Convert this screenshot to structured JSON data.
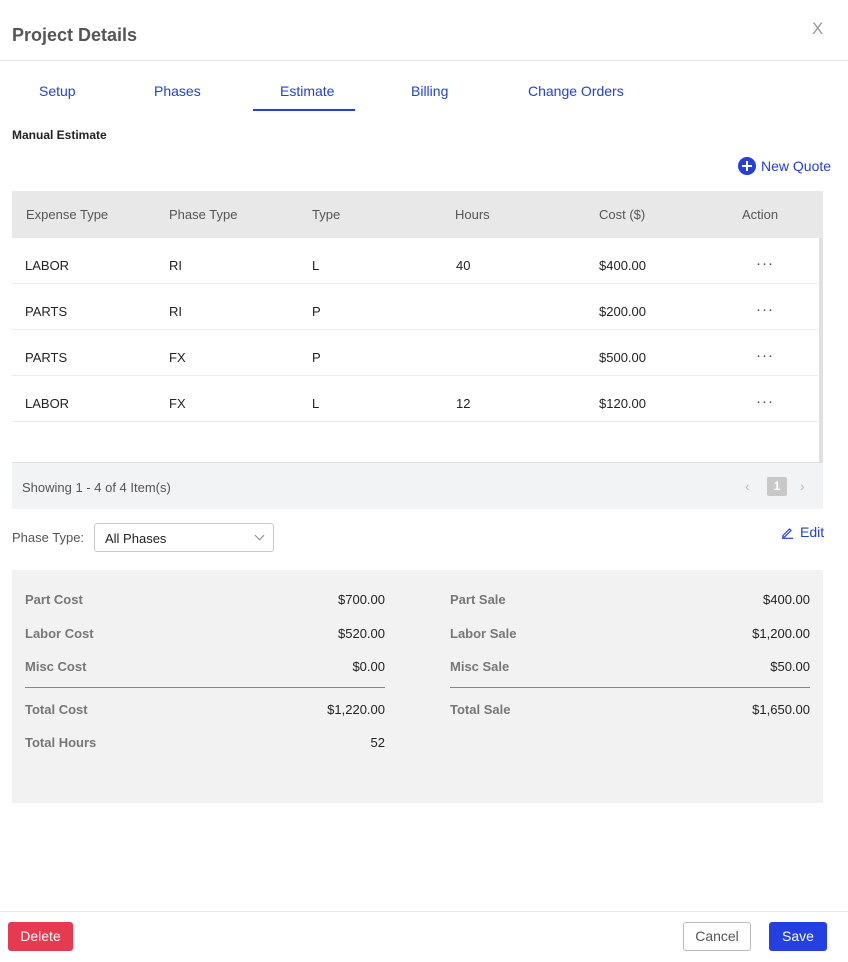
{
  "dialog": {
    "title": "Project Details",
    "close_label": "X"
  },
  "tabs": [
    {
      "label": "Setup"
    },
    {
      "label": "Phases"
    },
    {
      "label": "Estimate",
      "active": true
    },
    {
      "label": "Billing"
    },
    {
      "label": "Change Orders"
    }
  ],
  "estimate": {
    "section_title": "Manual Estimate",
    "new_quote_label": "New Quote",
    "columns": [
      "Expense Type",
      "Phase Type",
      "Type",
      "Hours",
      "Cost ($)",
      "Action"
    ],
    "rows": [
      {
        "expense_type": "LABOR",
        "phase_type": "RI",
        "type": "L",
        "hours": "40",
        "cost": "$400.00",
        "action": "···"
      },
      {
        "expense_type": "PARTS",
        "phase_type": "RI",
        "type": "P",
        "hours": "",
        "cost": "$200.00",
        "action": "···"
      },
      {
        "expense_type": "PARTS",
        "phase_type": "FX",
        "type": "P",
        "hours": "",
        "cost": "$500.00",
        "action": "···"
      },
      {
        "expense_type": "LABOR",
        "phase_type": "FX",
        "type": "L",
        "hours": "12",
        "cost": "$120.00",
        "action": "···"
      }
    ],
    "pagination": {
      "showing": "Showing 1 - 4 of 4 Item(s)",
      "prev": "‹",
      "page": "1",
      "next": "›"
    }
  },
  "filter": {
    "label": "Phase Type:",
    "value": "All Phases",
    "edit_label": "Edit"
  },
  "summary": {
    "cost": {
      "part_cost_label": "Part Cost",
      "part_cost": "$700.00",
      "labor_cost_label": "Labor Cost",
      "labor_cost": "$520.00",
      "misc_cost_label": "Misc Cost",
      "misc_cost": "$0.00",
      "total_cost_label": "Total Cost",
      "total_cost": "$1,220.00",
      "total_hours_label": "Total Hours",
      "total_hours": "52"
    },
    "sale": {
      "part_sale_label": "Part Sale",
      "part_sale": "$400.00",
      "labor_sale_label": "Labor Sale",
      "labor_sale": "$1,200.00",
      "misc_sale_label": "Misc Sale",
      "misc_sale": "$50.00",
      "total_sale_label": "Total Sale",
      "total_sale": "$1,650.00"
    }
  },
  "footer": {
    "delete_label": "Delete",
    "cancel_label": "Cancel",
    "save_label": "Save"
  },
  "colors": {
    "accent": "#2440d6",
    "danger": "#e53a4f",
    "save": "#2440e0"
  }
}
